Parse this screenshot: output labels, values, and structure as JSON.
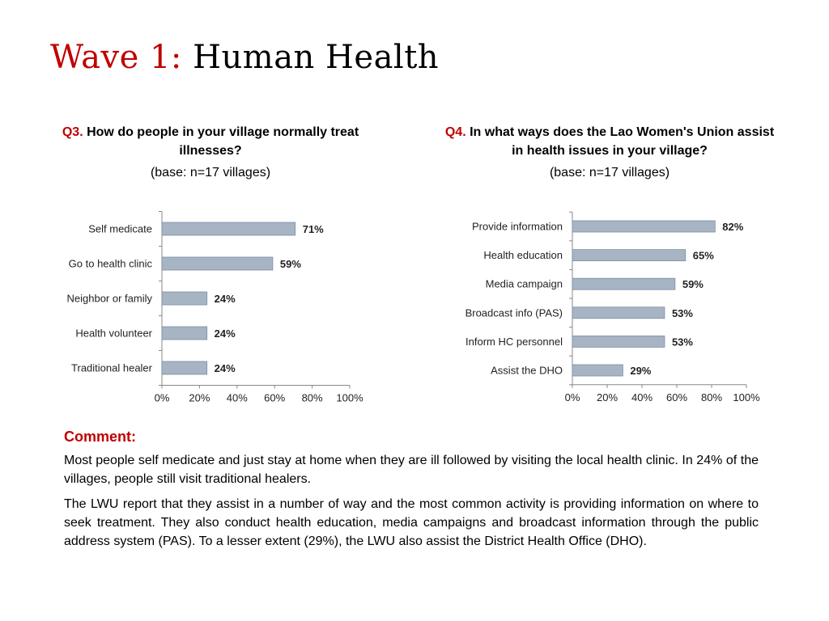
{
  "title": {
    "prefix": "Wave 1:",
    "main": "Human Health"
  },
  "q3": {
    "num": "Q3.",
    "question": "How do people in your village normally treat illnesses?",
    "base": "(base: n=17 villages)"
  },
  "q4": {
    "num": "Q4.",
    "question": "In what ways does the Lao Women's Union assist in health issues in your village?",
    "base": "(base: n=17 villages)"
  },
  "chart_data": [
    {
      "type": "bar",
      "orientation": "horizontal",
      "categories": [
        "Self medicate",
        "Go to health clinic",
        "Neighbor or family",
        "Health volunteer",
        "Traditional healer"
      ],
      "values": [
        71,
        59,
        24,
        24,
        24
      ],
      "value_labels": [
        "71%",
        "59%",
        "24%",
        "24%",
        "24%"
      ],
      "xlim": [
        0,
        100
      ],
      "xticks": [
        "0%",
        "20%",
        "40%",
        "60%",
        "80%",
        "100%"
      ],
      "bar_color": "#a6b4c4",
      "grid": false,
      "legend": "none"
    },
    {
      "type": "bar",
      "orientation": "horizontal",
      "categories": [
        "Provide information",
        "Health education",
        "Media campaign",
        "Broadcast info (PAS)",
        "Inform HC personnel",
        "Assist the DHO"
      ],
      "values": [
        82,
        65,
        59,
        53,
        53,
        29
      ],
      "value_labels": [
        "82%",
        "65%",
        "59%",
        "53%",
        "53%",
        "29%"
      ],
      "xlim": [
        0,
        100
      ],
      "xticks": [
        "0%",
        "20%",
        "40%",
        "60%",
        "80%",
        "100%"
      ],
      "bar_color": "#a6b4c4",
      "grid": false,
      "legend": "none"
    }
  ],
  "comment": {
    "heading": "Comment:",
    "p1": "Most people self medicate and just stay at home when they are ill followed by visiting the local health clinic. In 24% of the villages, people still visit traditional healers.",
    "p2": "The LWU report that they assist in a number of way and the most common activity is providing information on where to seek treatment. They also conduct health education, media campaigns and broadcast information through the public address system (PAS). To a lesser extent (29%), the LWU also assist the District Health Office (DHO)."
  }
}
